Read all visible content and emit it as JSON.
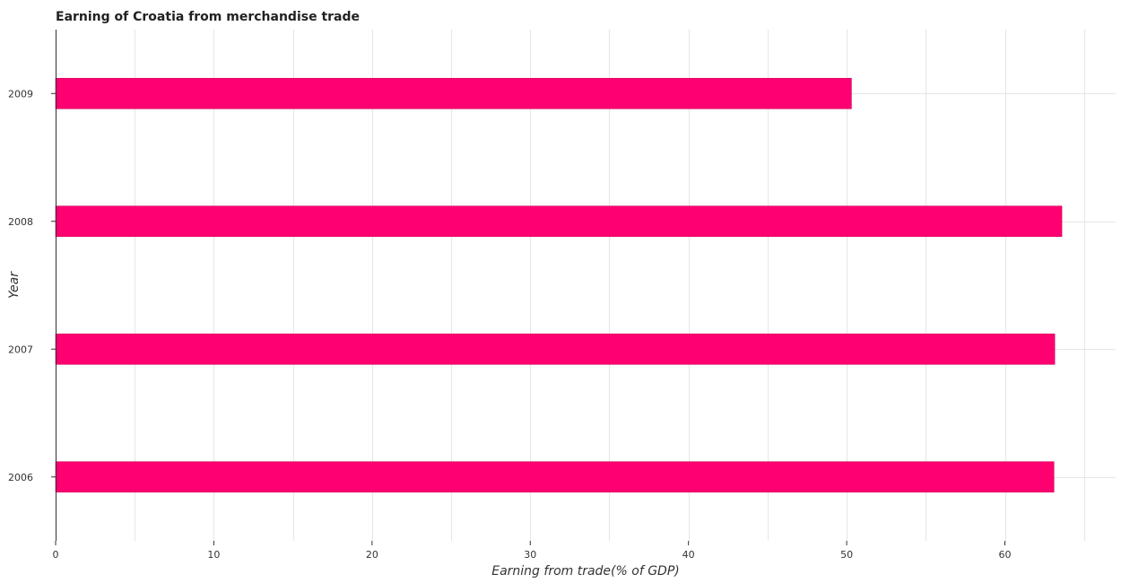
{
  "chart_data": {
    "type": "bar",
    "orientation": "horizontal",
    "title": "Earning of Croatia from merchandise trade",
    "xlabel": "Earning from trade(% of GDP)",
    "ylabel": "Year",
    "categories": [
      "2006",
      "2007",
      "2008",
      "2009"
    ],
    "values": [
      63.1,
      63.15,
      63.6,
      50.3
    ],
    "xlim": [
      0,
      67
    ],
    "xticks": [
      0,
      10,
      20,
      30,
      40,
      50,
      60
    ],
    "xtick_labels": [
      "0",
      "10",
      "20",
      "30",
      "40",
      "50",
      "60"
    ],
    "bar_color": "#ff0070",
    "bar_edge_color": "#cc0059",
    "grid": true
  }
}
